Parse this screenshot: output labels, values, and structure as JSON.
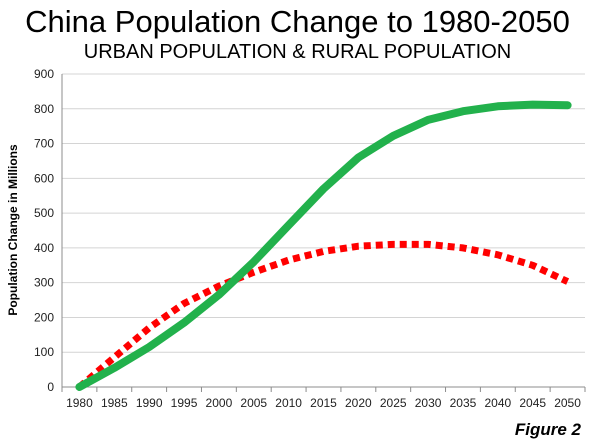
{
  "chart_data": {
    "type": "line",
    "title": "China Population Change to 1980-2050",
    "subtitle": "URBAN POPULATION & RURAL POPULATION",
    "xlabel": "",
    "ylabel": "Population Change in Millions",
    "x": [
      "1980",
      "1985",
      "1990",
      "1995",
      "2000",
      "2005",
      "2010",
      "2015",
      "2020",
      "2025",
      "2030",
      "2035",
      "2040",
      "2045",
      "2050"
    ],
    "ylim": [
      0,
      900
    ],
    "yticks": [
      0,
      100,
      200,
      300,
      400,
      500,
      600,
      700,
      800,
      900
    ],
    "grid": true,
    "legend": "none",
    "series": [
      {
        "color": "#22b14c",
        "style": "solid",
        "values": [
          0,
          55,
          115,
          185,
          265,
          360,
          465,
          570,
          660,
          722,
          768,
          793,
          807,
          812,
          810
        ]
      },
      {
        "color": "#ff0000",
        "style": "dotted",
        "values": [
          0,
          85,
          170,
          240,
          290,
          330,
          365,
          390,
          405,
          410,
          410,
          400,
          380,
          350,
          303
        ]
      }
    ]
  },
  "figure_label": "Figure 2"
}
